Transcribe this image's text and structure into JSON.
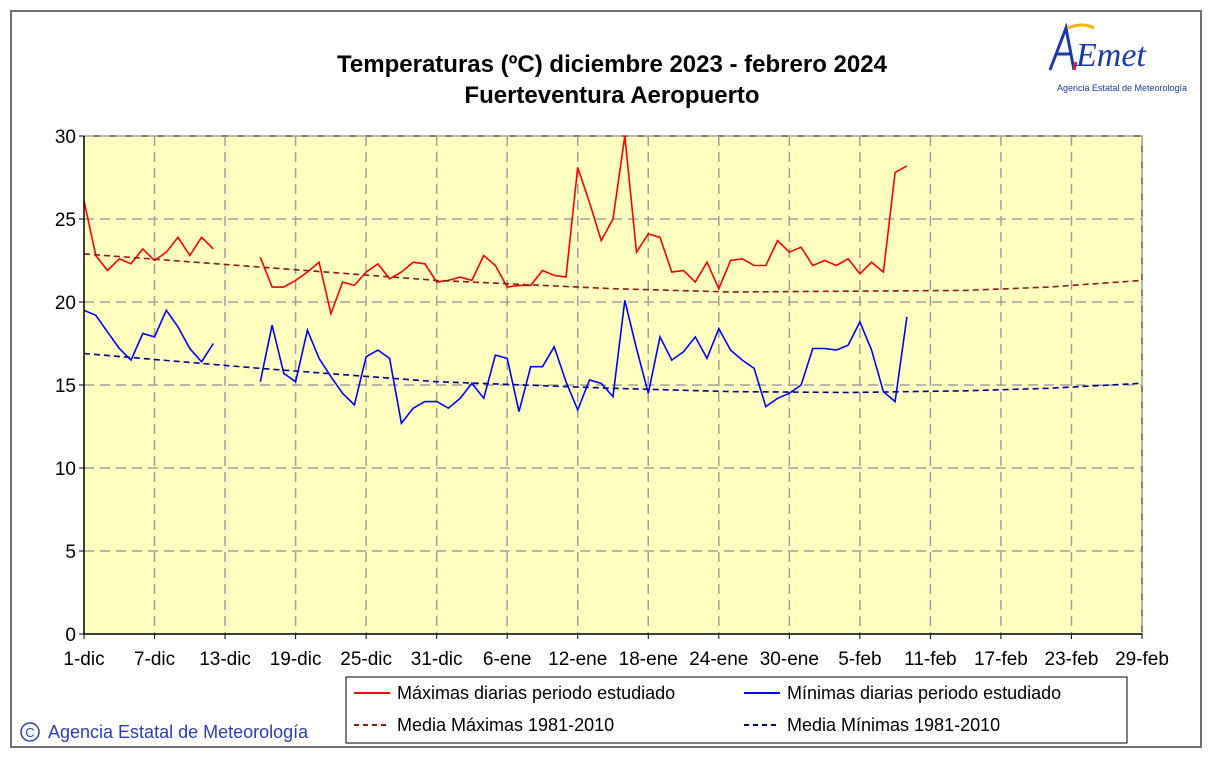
{
  "logo": {
    "brand": "AEMet",
    "subtitle": "Agencia Estatal de Meteorología"
  },
  "credit": {
    "symbol": "C",
    "text": "Agencia Estatal de Meteorología"
  },
  "colors": {
    "max": "#ff0000",
    "min": "#0000ff",
    "mean_max": "#8b1a1a",
    "mean_min": "#00008b",
    "plot_bg": "#ffffc0"
  },
  "chart_data": {
    "type": "line",
    "title": "Temperaturas (ºC) diciembre 2023 - febrero 2024",
    "subtitle": "Fuerteventura Aeropuerto",
    "ylim": [
      0,
      30
    ],
    "yticks": [
      0,
      5,
      10,
      15,
      20,
      25,
      30
    ],
    "x_labels": [
      "1-dic",
      "7-dic",
      "13-dic",
      "19-dic",
      "25-dic",
      "31-dic",
      "6-ene",
      "12-ene",
      "18-ene",
      "24-ene",
      "30-ene",
      "5-feb",
      "11-feb",
      "17-feb",
      "23-feb",
      "29-feb"
    ],
    "x_label_day_index": [
      0,
      6,
      12,
      18,
      24,
      30,
      36,
      42,
      48,
      54,
      60,
      66,
      72,
      78,
      84,
      90
    ],
    "xlim_days": [
      0,
      90
    ],
    "grid": true,
    "legend_position": "bottom",
    "series": [
      {
        "name": "Máximas diarias periodo estudiado",
        "style": "solid",
        "values": [
          26.1,
          22.8,
          21.9,
          22.6,
          22.3,
          23.2,
          22.5,
          23.0,
          23.9,
          22.8,
          23.9,
          23.2,
          null,
          null,
          null,
          22.7,
          20.9,
          20.9,
          21.3,
          21.8,
          22.4,
          19.3,
          21.2,
          21.0,
          21.8,
          22.3,
          21.4,
          21.8,
          22.4,
          22.3,
          21.2,
          21.3,
          21.5,
          21.3,
          22.8,
          22.2,
          20.9,
          21.0,
          21.0,
          21.9,
          21.6,
          21.5,
          28.1,
          26.0,
          23.7,
          25.0,
          30.0,
          23.0,
          24.1,
          23.9,
          21.8,
          21.9,
          21.2,
          22.4,
          20.8,
          22.5,
          22.6,
          22.2,
          22.2,
          23.7,
          23.0,
          23.3,
          22.2,
          22.5,
          22.2,
          22.6,
          21.7,
          22.4,
          21.8,
          27.8,
          28.2
        ]
      },
      {
        "name": "Mínimas diarias periodo estudiado",
        "style": "solid",
        "values": [
          19.5,
          19.2,
          18.2,
          17.2,
          16.5,
          18.1,
          17.9,
          19.5,
          18.5,
          17.2,
          16.4,
          17.5,
          null,
          null,
          null,
          15.2,
          18.6,
          15.7,
          15.2,
          18.3,
          16.6,
          15.5,
          14.5,
          13.8,
          16.7,
          17.1,
          16.6,
          12.7,
          13.6,
          14.0,
          14.0,
          13.6,
          14.2,
          15.1,
          14.2,
          16.8,
          16.6,
          13.4,
          16.1,
          16.1,
          17.3,
          15.2,
          13.5,
          15.3,
          15.1,
          14.3,
          20.1,
          17.2,
          14.5,
          17.9,
          16.5,
          17.0,
          17.9,
          16.6,
          18.4,
          17.1,
          16.5,
          16.0,
          13.7,
          14.2,
          14.5,
          15.0,
          17.2,
          17.2,
          17.1,
          17.4,
          18.8,
          17.1,
          14.6,
          14.0,
          19.1
        ]
      },
      {
        "name": "Media Máximas 1981-2010",
        "style": "dashed",
        "x": [
          0,
          15,
          30,
          45,
          55,
          65,
          75,
          82,
          90
        ],
        "values": [
          22.9,
          22.1,
          21.3,
          20.8,
          20.6,
          20.65,
          20.7,
          20.9,
          21.3
        ]
      },
      {
        "name": "Media Mínimas 1981-2010",
        "style": "dashed",
        "x": [
          0,
          15,
          30,
          45,
          55,
          65,
          75,
          82,
          90
        ],
        "values": [
          16.9,
          16.0,
          15.2,
          14.8,
          14.6,
          14.55,
          14.65,
          14.8,
          15.1
        ]
      }
    ]
  }
}
